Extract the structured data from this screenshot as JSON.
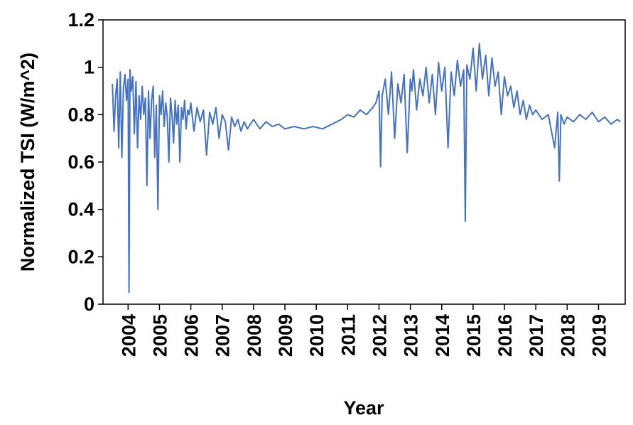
{
  "chart_data": {
    "type": "line",
    "title": "",
    "xlabel": "Year",
    "ylabel": "Normalized TSI (W/m^2)",
    "ylim": [
      0,
      1.2
    ],
    "xlim": [
      2003.2,
      2019.85
    ],
    "y_ticks": [
      "0",
      "0.2",
      "0.4",
      "0.6",
      "0.8",
      "1",
      "1.2"
    ],
    "x_ticks": [
      "2004",
      "2005",
      "2006",
      "2007",
      "2008",
      "2009",
      "2010",
      "2011",
      "2012",
      "2013",
      "2014",
      "2015",
      "2016",
      "2017",
      "2018",
      "2019"
    ],
    "grid": false,
    "legend": "none",
    "series": [
      {
        "color": "#4472C4",
        "x": [
          2003.5,
          2003.55,
          2003.6,
          2003.65,
          2003.7,
          2003.75,
          2003.8,
          2003.85,
          2003.9,
          2003.95,
          2004.0,
          2004.03,
          2004.06,
          2004.1,
          2004.15,
          2004.2,
          2004.25,
          2004.3,
          2004.35,
          2004.4,
          2004.45,
          2004.5,
          2004.55,
          2004.6,
          2004.65,
          2004.7,
          2004.75,
          2004.8,
          2004.85,
          2004.9,
          2004.95,
          2005.0,
          2005.05,
          2005.1,
          2005.15,
          2005.2,
          2005.25,
          2005.3,
          2005.35,
          2005.4,
          2005.45,
          2005.5,
          2005.55,
          2005.6,
          2005.65,
          2005.7,
          2005.75,
          2005.8,
          2005.85,
          2005.9,
          2005.95,
          2006.0,
          2006.1,
          2006.2,
          2006.3,
          2006.4,
          2006.5,
          2006.6,
          2006.7,
          2006.8,
          2006.9,
          2007.0,
          2007.1,
          2007.2,
          2007.3,
          2007.4,
          2007.5,
          2007.6,
          2007.7,
          2007.8,
          2007.9,
          2008.0,
          2008.2,
          2008.4,
          2008.6,
          2008.8,
          2009.0,
          2009.3,
          2009.6,
          2009.9,
          2010.2,
          2010.5,
          2010.8,
          2011.0,
          2011.2,
          2011.4,
          2011.6,
          2011.8,
          2011.9,
          2012.0,
          2012.05,
          2012.1,
          2012.2,
          2012.3,
          2012.4,
          2012.5,
          2012.6,
          2012.7,
          2012.8,
          2012.9,
          2013.0,
          2013.05,
          2013.1,
          2013.2,
          2013.3,
          2013.4,
          2013.5,
          2013.6,
          2013.7,
          2013.8,
          2013.9,
          2014.0,
          2014.1,
          2014.2,
          2014.3,
          2014.4,
          2014.5,
          2014.6,
          2014.7,
          2014.75,
          2014.8,
          2014.9,
          2015.0,
          2015.1,
          2015.2,
          2015.3,
          2015.4,
          2015.5,
          2015.6,
          2015.7,
          2015.8,
          2015.9,
          2016.0,
          2016.1,
          2016.2,
          2016.3,
          2016.4,
          2016.5,
          2016.6,
          2016.7,
          2016.8,
          2016.9,
          2017.0,
          2017.2,
          2017.4,
          2017.6,
          2017.7,
          2017.75,
          2017.8,
          2017.9,
          2018.0,
          2018.2,
          2018.4,
          2018.6,
          2018.8,
          2019.0,
          2019.2,
          2019.4,
          2019.6,
          2019.7
        ],
        "y": [
          0.93,
          0.73,
          0.88,
          0.95,
          0.66,
          0.98,
          0.62,
          0.91,
          0.97,
          0.86,
          0.95,
          0.05,
          0.99,
          0.9,
          0.96,
          0.72,
          0.94,
          0.66,
          0.88,
          0.78,
          0.92,
          0.8,
          0.87,
          0.5,
          0.9,
          0.7,
          0.86,
          0.92,
          0.62,
          0.84,
          0.4,
          0.88,
          0.8,
          0.9,
          0.75,
          0.85,
          0.79,
          0.6,
          0.87,
          0.8,
          0.68,
          0.86,
          0.76,
          0.84,
          0.6,
          0.83,
          0.78,
          0.86,
          0.74,
          0.82,
          0.8,
          0.85,
          0.73,
          0.83,
          0.77,
          0.82,
          0.63,
          0.81,
          0.76,
          0.83,
          0.7,
          0.8,
          0.77,
          0.65,
          0.79,
          0.75,
          0.78,
          0.73,
          0.77,
          0.74,
          0.76,
          0.78,
          0.74,
          0.77,
          0.75,
          0.76,
          0.74,
          0.75,
          0.74,
          0.75,
          0.74,
          0.76,
          0.78,
          0.8,
          0.79,
          0.82,
          0.8,
          0.83,
          0.85,
          0.9,
          0.58,
          0.88,
          0.95,
          0.8,
          0.98,
          0.7,
          0.93,
          0.85,
          0.97,
          0.64,
          0.95,
          0.9,
          0.99,
          0.82,
          0.95,
          0.88,
          1.0,
          0.85,
          0.97,
          0.8,
          1.02,
          0.9,
          1.0,
          0.66,
          0.98,
          0.88,
          1.03,
          0.92,
          0.99,
          0.35,
          1.01,
          0.95,
          1.08,
          0.9,
          1.1,
          0.95,
          1.05,
          0.88,
          1.04,
          0.92,
          0.98,
          0.8,
          0.96,
          0.88,
          0.92,
          0.83,
          0.9,
          0.8,
          0.86,
          0.78,
          0.84,
          0.8,
          0.82,
          0.78,
          0.8,
          0.66,
          0.81,
          0.52,
          0.8,
          0.76,
          0.79,
          0.77,
          0.8,
          0.78,
          0.81,
          0.77,
          0.79,
          0.76,
          0.78,
          0.77
        ]
      }
    ]
  }
}
